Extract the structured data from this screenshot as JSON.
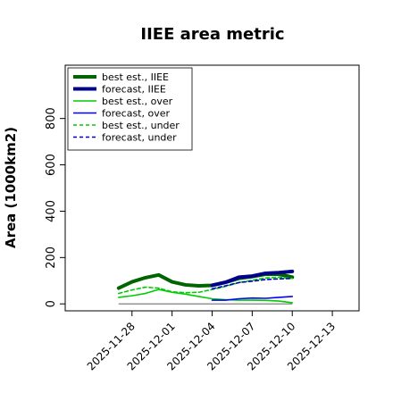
{
  "chart_data": {
    "type": "line",
    "title": "IIEE area metric",
    "xlabel": "",
    "ylabel": "Area (1000km2)",
    "xlim": [
      "2025-11-23",
      "2025-12-15"
    ],
    "ylim": [
      -30,
      1030
    ],
    "yticks": [
      0,
      200,
      400,
      600,
      800
    ],
    "xticks": [
      "2025-11-28",
      "2025-12-01",
      "2025-12-04",
      "2025-12-07",
      "2025-12-10",
      "2025-12-13"
    ],
    "highlighted_xtick": "2025-12-04",
    "highlight_color": "#228B22",
    "grid": false,
    "legend_position": "top-left",
    "reference_line": {
      "y": 0,
      "x_from": "2025-11-27",
      "x_to": "2025-12-10",
      "color": "#808080"
    },
    "x": [
      "2025-11-27",
      "2025-11-28",
      "2025-11-29",
      "2025-11-30",
      "2025-12-01",
      "2025-12-02",
      "2025-12-03",
      "2025-12-04",
      "2025-12-05",
      "2025-12-06",
      "2025-12-07",
      "2025-12-08",
      "2025-12-09",
      "2025-12-10"
    ],
    "series": [
      {
        "name": "best est., IIEE",
        "color": "#006400",
        "style": "solid",
        "width": "thick",
        "x": [
          "2025-11-27",
          "2025-11-28",
          "2025-11-29",
          "2025-11-30",
          "2025-12-01",
          "2025-12-02",
          "2025-12-03",
          "2025-12-04",
          "2025-12-05",
          "2025-12-06",
          "2025-12-07",
          "2025-12-08",
          "2025-12-09",
          "2025-12-10"
        ],
        "values": [
          68,
          95,
          113,
          125,
          95,
          82,
          78,
          80,
          93,
          110,
          118,
          128,
          128,
          115
        ]
      },
      {
        "name": "forecast, IIEE",
        "color": "#00008B",
        "style": "solid",
        "width": "thick",
        "x": [
          "2025-12-04",
          "2025-12-05",
          "2025-12-06",
          "2025-12-07",
          "2025-12-08",
          "2025-12-09",
          "2025-12-10"
        ],
        "values": [
          80,
          93,
          115,
          120,
          132,
          135,
          140
        ]
      },
      {
        "name": "best est., over",
        "color": "#00CC00",
        "style": "solid",
        "width": "thin",
        "x": [
          "2025-11-27",
          "2025-11-28",
          "2025-11-29",
          "2025-11-30",
          "2025-12-01",
          "2025-12-02",
          "2025-12-03",
          "2025-12-04",
          "2025-12-05",
          "2025-12-06",
          "2025-12-07",
          "2025-12-08",
          "2025-12-09",
          "2025-12-10"
        ],
        "values": [
          28,
          35,
          45,
          62,
          50,
          42,
          32,
          22,
          18,
          16,
          16,
          15,
          12,
          5
        ]
      },
      {
        "name": "forecast, over",
        "color": "#0000FF",
        "style": "solid",
        "width": "thin",
        "x": [
          "2025-12-04",
          "2025-12-05",
          "2025-12-06",
          "2025-12-07",
          "2025-12-08",
          "2025-12-09",
          "2025-12-10"
        ],
        "values": [
          16,
          16,
          22,
          25,
          24,
          28,
          32
        ]
      },
      {
        "name": "best est., under",
        "color": "#00CC00",
        "style": "dashed",
        "width": "thin",
        "x": [
          "2025-11-27",
          "2025-11-28",
          "2025-11-29",
          "2025-11-30",
          "2025-12-01",
          "2025-12-02",
          "2025-12-03",
          "2025-12-04",
          "2025-12-05",
          "2025-12-06",
          "2025-12-07",
          "2025-12-08",
          "2025-12-09",
          "2025-12-10"
        ],
        "values": [
          45,
          60,
          72,
          68,
          52,
          48,
          50,
          62,
          75,
          92,
          102,
          112,
          115,
          110
        ]
      },
      {
        "name": "forecast, under",
        "color": "#0000CD",
        "style": "dashed",
        "width": "thin",
        "x": [
          "2025-12-04",
          "2025-12-05",
          "2025-12-06",
          "2025-12-07",
          "2025-12-08",
          "2025-12-09",
          "2025-12-10"
        ],
        "values": [
          65,
          78,
          92,
          98,
          105,
          108,
          110
        ]
      }
    ]
  }
}
